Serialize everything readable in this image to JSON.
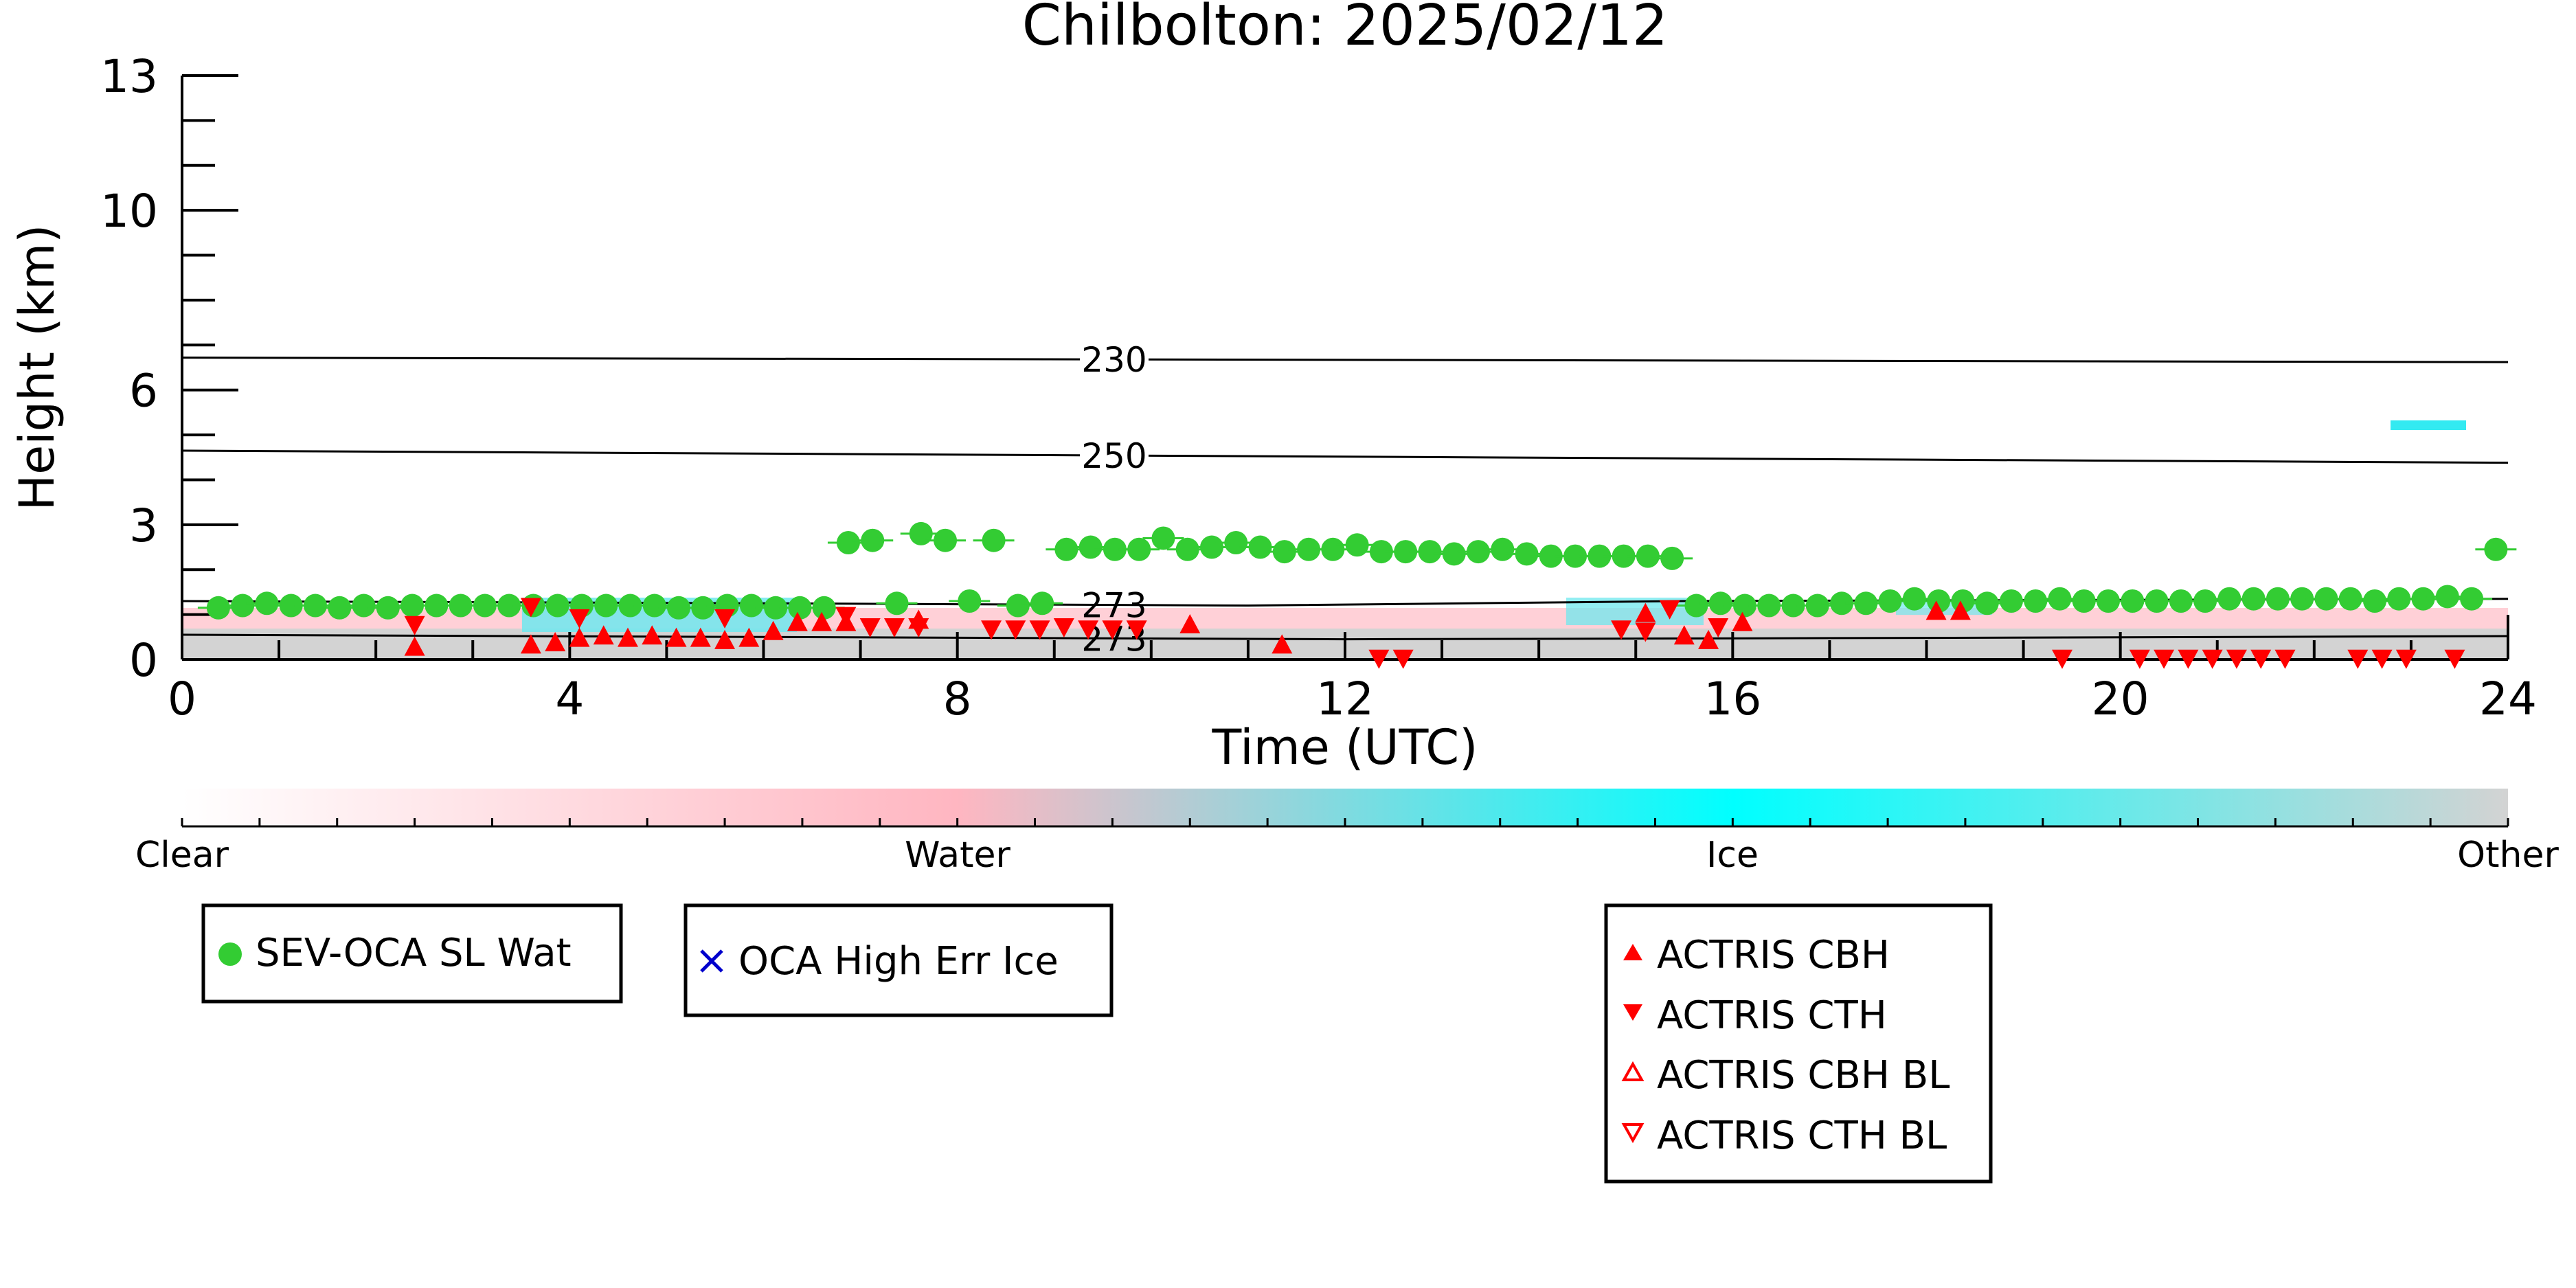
{
  "chart_data": {
    "type": "scatter",
    "title": "Chilbolton: 2025/02/12",
    "xlabel": "Time (UTC)",
    "ylabel": "Height (km)",
    "xlim": [
      0,
      24
    ],
    "ylim": [
      0,
      13
    ],
    "xticks": [
      "0",
      "4",
      "8",
      "12",
      "16",
      "20",
      "24"
    ],
    "yticks": [
      "0",
      "3",
      "6",
      "10",
      "13"
    ],
    "grid": false,
    "colorbar": {
      "labels": [
        "Clear",
        "Water",
        "Ice",
        "Other"
      ],
      "colors": [
        "#ffffff",
        "#ffb6c1",
        "#00ffff",
        "#d3d3d3"
      ]
    },
    "contours": [
      {
        "label": "230",
        "x": [
          0,
          24
        ],
        "y": [
          6.72,
          6.62
        ]
      },
      {
        "label": "250",
        "x": [
          0,
          24
        ],
        "y": [
          4.65,
          4.38
        ]
      },
      {
        "label": "273",
        "x": [
          0,
          6,
          11,
          15.5,
          24
        ],
        "y": [
          1.3,
          1.25,
          1.2,
          1.3,
          1.35
        ]
      },
      {
        "label": "273",
        "x": [
          0,
          6,
          12,
          18,
          24
        ],
        "y": [
          0.55,
          0.5,
          0.45,
          0.48,
          0.52
        ]
      }
    ],
    "legend_placement": "below",
    "legends": [
      {
        "entries": [
          {
            "label": "SEV-OCA SL Wat",
            "marker": "circle",
            "color": "#33cc33"
          }
        ]
      },
      {
        "entries": [
          {
            "label": "OCA High Err Ice",
            "marker": "x",
            "color": "#0000cc"
          }
        ]
      },
      {
        "entries": [
          {
            "label": "ACTRIS CBH",
            "marker": "triangle-up",
            "color": "#ff0000"
          },
          {
            "label": "ACTRIS CTH",
            "marker": "triangle-down",
            "color": "#ff0000"
          },
          {
            "label": "ACTRIS CBH BL",
            "marker": "triangle-up-open",
            "color": "#ff0000"
          },
          {
            "label": "ACTRIS CTH BL",
            "marker": "triangle-down-open",
            "color": "#ff0000"
          }
        ]
      }
    ],
    "series": [
      {
        "name": "SEV-OCA SL Wat",
        "marker": "circle",
        "color": "#33cc33",
        "x": [
          0.375,
          0.625,
          0.875,
          1.125,
          1.375,
          1.625,
          1.875,
          2.125,
          2.375,
          2.625,
          2.875,
          3.125,
          3.375,
          3.625,
          3.875,
          4.125,
          4.375,
          4.625,
          4.875,
          5.125,
          5.375,
          5.625,
          5.875,
          6.125,
          6.375,
          6.625,
          6.875,
          7.125,
          7.375,
          7.625,
          7.875,
          8.125,
          8.375,
          8.625,
          8.875,
          9.125,
          9.375,
          9.625,
          9.875,
          10.125,
          10.375,
          10.625,
          10.875,
          11.125,
          11.375,
          11.625,
          11.875,
          12.125,
          12.375,
          12.625,
          12.875,
          13.125,
          13.375,
          13.625,
          13.875,
          14.125,
          14.375,
          14.625,
          14.875,
          15.125,
          15.375,
          15.625,
          15.875,
          16.125,
          16.375,
          16.625,
          16.875,
          17.125,
          17.375,
          17.625,
          17.875,
          18.125,
          18.375,
          18.625,
          18.875,
          19.125,
          19.375,
          19.625,
          19.875,
          20.125,
          20.375,
          20.625,
          20.875,
          21.125,
          21.375,
          21.625,
          21.875,
          22.125,
          22.375,
          22.625,
          22.875,
          23.125,
          23.375,
          23.625,
          23.875
        ],
        "y": [
          1.15,
          1.2,
          1.25,
          1.2,
          1.2,
          1.15,
          1.2,
          1.15,
          1.2,
          1.2,
          1.2,
          1.2,
          1.2,
          1.2,
          1.2,
          1.2,
          1.2,
          1.2,
          1.2,
          1.15,
          1.15,
          1.2,
          1.2,
          1.15,
          1.15,
          1.15,
          2.6,
          2.65,
          1.25,
          2.8,
          2.65,
          1.3,
          2.65,
          1.2,
          1.25,
          2.45,
          2.5,
          2.45,
          2.45,
          2.7,
          2.45,
          2.5,
          2.6,
          2.5,
          2.4,
          2.45,
          2.45,
          2.55,
          2.4,
          2.4,
          2.4,
          2.35,
          2.4,
          2.45,
          2.35,
          2.3,
          2.3,
          2.3,
          2.3,
          2.3,
          2.25,
          1.2,
          1.25,
          1.2,
          1.2,
          1.2,
          1.2,
          1.25,
          1.25,
          1.3,
          1.35,
          1.3,
          1.3,
          1.25,
          1.3,
          1.3,
          1.35,
          1.3,
          1.3,
          1.3,
          1.3,
          1.3,
          1.3,
          1.35,
          1.35,
          1.35,
          1.35,
          1.35,
          1.35,
          1.3,
          1.35,
          1.35,
          1.4,
          1.35,
          2.45
        ]
      },
      {
        "name": "ACTRIS CBH",
        "marker": "triangle-up",
        "color": "#ff0000",
        "x": [
          2.4,
          3.6,
          3.85,
          4.1,
          4.35,
          4.6,
          4.85,
          5.1,
          5.35,
          5.6,
          5.85,
          6.1,
          6.35,
          6.6,
          6.85,
          7.6,
          10.4,
          11.35,
          15.1,
          15.5,
          15.75,
          16.1,
          18.1,
          18.35
        ],
        "y": [
          0.25,
          0.3,
          0.35,
          0.45,
          0.5,
          0.45,
          0.5,
          0.45,
          0.45,
          0.4,
          0.45,
          0.6,
          0.8,
          0.8,
          0.8,
          0.85,
          0.75,
          0.3,
          1.0,
          0.5,
          0.4,
          0.8,
          1.05,
          1.05
        ]
      },
      {
        "name": "ACTRIS CTH",
        "marker": "triangle-down",
        "color": "#ff0000",
        "x": [
          2.4,
          3.6,
          4.1,
          5.6,
          6.85,
          7.1,
          7.35,
          7.6,
          8.35,
          8.6,
          8.85,
          9.1,
          9.35,
          9.6,
          9.85,
          12.35,
          12.6,
          14.85,
          15.1,
          15.35,
          15.85,
          19.4,
          20.2,
          20.45,
          20.7,
          20.95,
          21.2,
          21.45,
          21.7,
          22.45,
          22.7,
          22.95,
          23.45
        ],
        "y": [
          0.8,
          1.2,
          0.95,
          0.95,
          1.0,
          0.75,
          0.75,
          0.75,
          0.7,
          0.7,
          0.7,
          0.75,
          0.7,
          0.7,
          0.7,
          0.05,
          0.05,
          0.7,
          0.65,
          1.15,
          0.75,
          0.05,
          0.05,
          0.05,
          0.05,
          0.05,
          0.05,
          0.05,
          0.05,
          0.05,
          0.05,
          0.05,
          0.05
        ]
      },
      {
        "name": "OCA High Err Ice",
        "marker": "x",
        "color": "#0000cc",
        "x": [],
        "y": []
      },
      {
        "name": "ACTRIS CBH BL",
        "marker": "triangle-up-open",
        "color": "#ff0000",
        "x": [],
        "y": []
      },
      {
        "name": "ACTRIS CTH BL",
        "marker": "triangle-down-open",
        "color": "#ff0000",
        "x": [],
        "y": []
      }
    ]
  }
}
